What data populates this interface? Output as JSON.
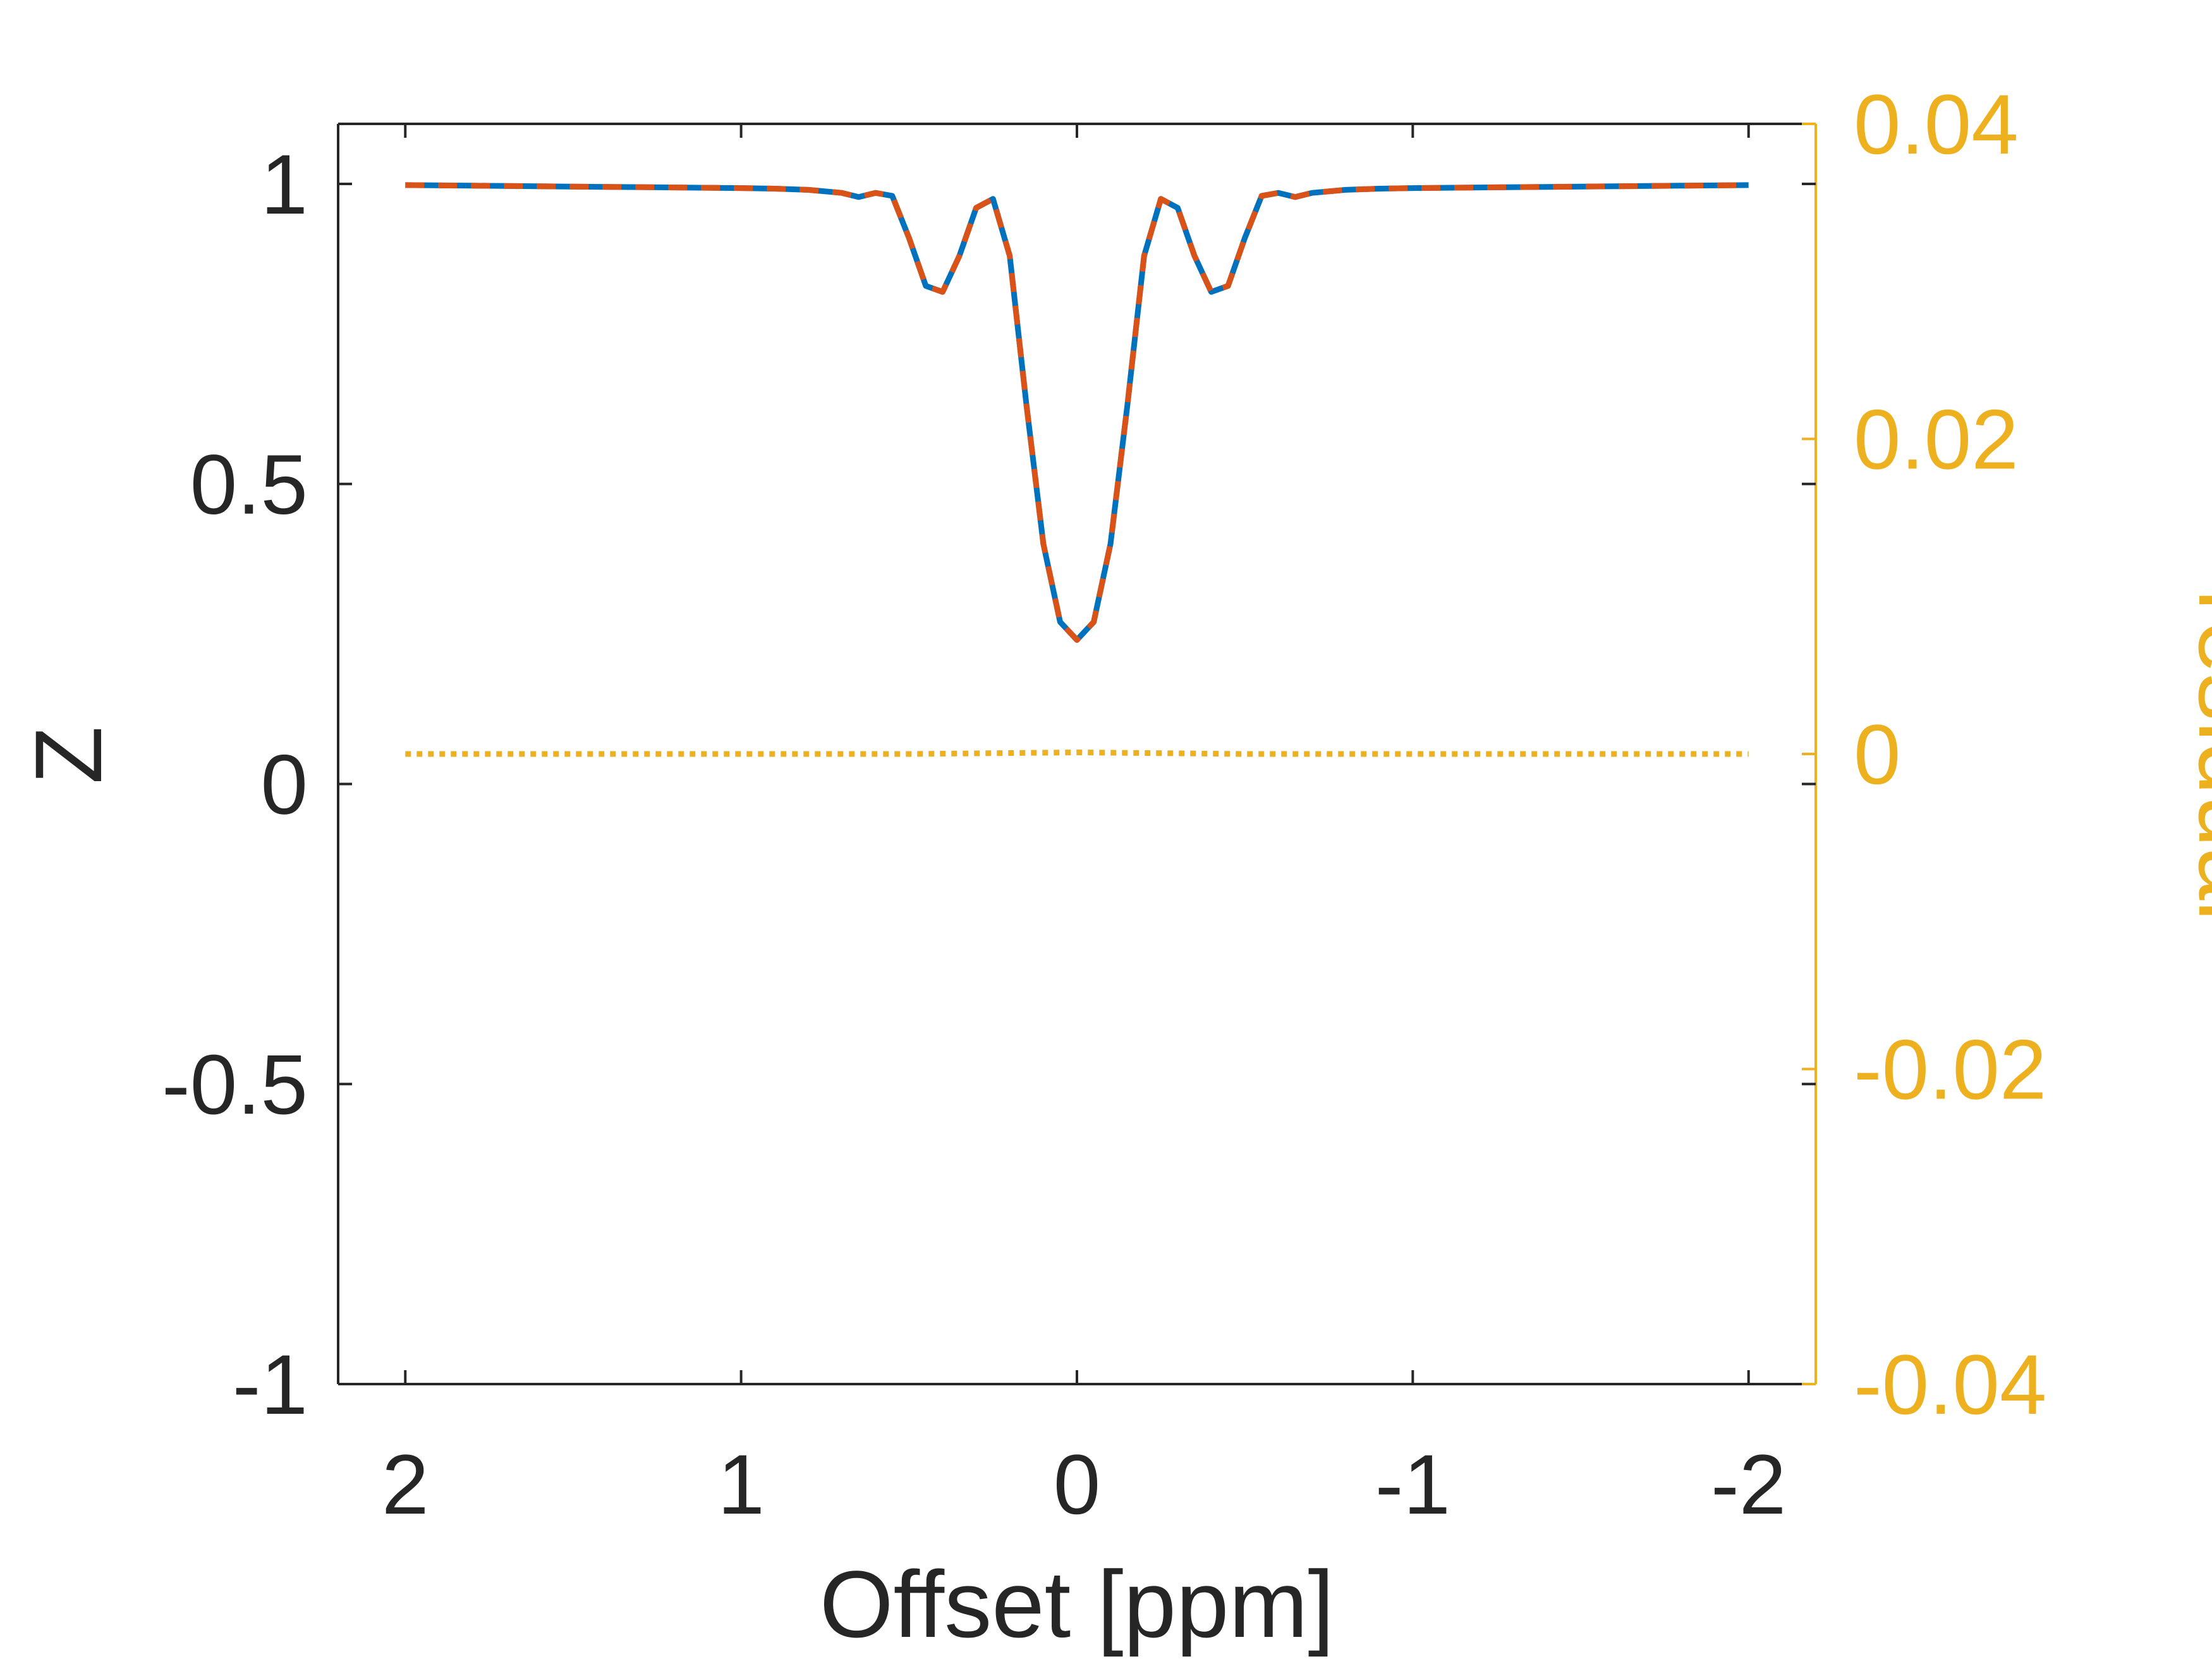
{
  "chart_data": {
    "type": "line",
    "xlabel": "Offset [ppm]",
    "ylabel": "Z",
    "y2label": "residual",
    "xlim": [
      2.2,
      -2.2
    ],
    "x_reversed": true,
    "ylim": [
      -1,
      1.1
    ],
    "y2lim": [
      -0.04,
      0.04
    ],
    "xticks": [
      2,
      1,
      0,
      -1,
      -2
    ],
    "xtick_labels": [
      "2",
      "1",
      "0",
      "-1",
      "-2"
    ],
    "yticks": [
      1,
      0.5,
      0,
      -0.5,
      -1
    ],
    "ytick_labels": [
      "1",
      "0.5",
      "0",
      "-0.5",
      "-1"
    ],
    "y2ticks": [
      0.04,
      0.02,
      0,
      -0.02,
      -0.04
    ],
    "y2tick_labels": [
      "0.04",
      "0.02",
      "0",
      "-0.02",
      "-0.04"
    ],
    "grid": false,
    "colors": {
      "series1": "#0072BD",
      "series2": "#D95319",
      "residual": "#EDB120",
      "axis": "#262626"
    },
    "x": [
      2.0,
      1.8,
      1.6,
      1.4,
      1.2,
      1.0,
      0.9,
      0.8,
      0.7,
      0.65,
      0.6,
      0.55,
      0.5,
      0.45,
      0.4,
      0.35,
      0.3,
      0.25,
      0.2,
      0.15,
      0.1,
      0.05,
      0.0,
      -0.05,
      -0.1,
      -0.15,
      -0.2,
      -0.25,
      -0.3,
      -0.35,
      -0.4,
      -0.45,
      -0.5,
      -0.55,
      -0.6,
      -0.65,
      -0.7,
      -0.8,
      -0.9,
      -1.0,
      -1.2,
      -1.4,
      -1.6,
      -1.8,
      -2.0
    ],
    "series": [
      {
        "values": [
          0.998,
          0.997,
          0.996,
          0.995,
          0.994,
          0.993,
          0.992,
          0.99,
          0.985,
          0.978,
          0.985,
          0.98,
          0.91,
          0.83,
          0.82,
          0.88,
          0.96,
          0.975,
          0.88,
          0.63,
          0.4,
          0.27,
          0.24,
          0.27,
          0.4,
          0.63,
          0.88,
          0.975,
          0.96,
          0.88,
          0.82,
          0.83,
          0.91,
          0.98,
          0.985,
          0.978,
          0.985,
          0.99,
          0.992,
          0.993,
          0.994,
          0.995,
          0.996,
          0.997,
          0.998
        ]
      },
      {
        "values": [
          0.998,
          0.997,
          0.996,
          0.995,
          0.994,
          0.993,
          0.992,
          0.99,
          0.985,
          0.978,
          0.985,
          0.98,
          0.91,
          0.83,
          0.82,
          0.88,
          0.96,
          0.975,
          0.88,
          0.63,
          0.4,
          0.27,
          0.24,
          0.27,
          0.4,
          0.63,
          0.88,
          0.975,
          0.96,
          0.88,
          0.82,
          0.83,
          0.91,
          0.98,
          0.985,
          0.978,
          0.985,
          0.99,
          0.992,
          0.993,
          0.994,
          0.995,
          0.996,
          0.997,
          0.998
        ]
      }
    ],
    "residual": {
      "x": [
        2.0,
        1.0,
        0.5,
        0.0,
        -0.5,
        -1.0,
        -2.0
      ],
      "values": [
        0.0,
        0.0,
        0.0,
        0.0001,
        0.0,
        0.0,
        0.0
      ]
    }
  }
}
